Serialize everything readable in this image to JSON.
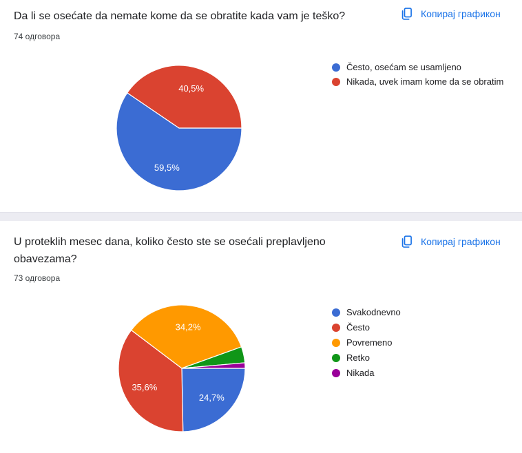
{
  "accent": {
    "link_blue": "#1a73e8"
  },
  "cards": [
    {
      "title": "Da li se osećate da nemate kome da se obratite kada vam je teško?",
      "responses": "74 одговора",
      "copy_label": "Копирај графикон"
    },
    {
      "title": "U proteklih mesec dana, koliko često ste se osećali preplavljeno obavezama?",
      "responses": "73 одговора",
      "copy_label": "Копирај графикон"
    }
  ],
  "chart_data": [
    {
      "type": "pie",
      "title": "Da li se osećate da nemate kome da se obratite kada vam je teško?",
      "subtitle": "74 одговора",
      "labels": [
        "Često, osećam se usamljeno",
        "Nikada, uvek imam kome da se obratim"
      ],
      "values_pct": [
        59.5,
        40.5
      ],
      "slice_labels": [
        "59,5%",
        "40,5%"
      ],
      "colors": [
        "#3b6cd3",
        "#da4330"
      ],
      "start_angle": "east",
      "direction": "clockwise",
      "legend_position": "right"
    },
    {
      "type": "pie",
      "title": "U proteklih mesec dana, koliko često ste se osećali preplavljeno obavezama?",
      "subtitle": "73 одговора",
      "labels": [
        "Svakodnevno",
        "Često",
        "Povremeno",
        "Retko",
        "Nikada"
      ],
      "values_pct": [
        24.7,
        35.6,
        34.2,
        4.1,
        1.4
      ],
      "slice_labels": [
        "24,7%",
        "35,6%",
        "34,2%",
        "",
        ""
      ],
      "colors": [
        "#3b6cd3",
        "#da4330",
        "#ff9900",
        "#109618",
        "#990099"
      ],
      "start_angle": "east",
      "direction": "clockwise",
      "legend_position": "right"
    }
  ]
}
